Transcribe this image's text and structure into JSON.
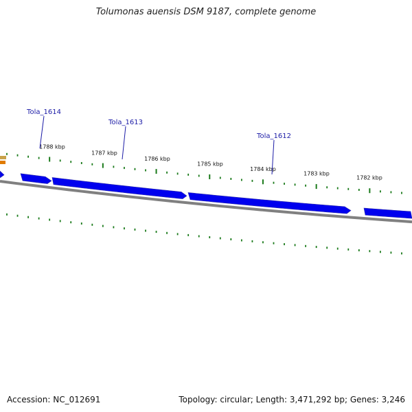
{
  "title": "Tolumonas auensis DSM 9187, complete genome",
  "footer": {
    "accession": "Accession: NC_012691",
    "summary": "Topology: circular; Length: 3,471,292 bp; Genes: 3,246"
  },
  "colors": {
    "gene_fill": "#0000ee",
    "gene_label": "#1a1aa6",
    "backbone": "#808080",
    "tick": "#1a7a1a"
  },
  "gene_labels": [
    "Tola_1614",
    "Tola_1613",
    "Tola_1612"
  ],
  "tick_labels": [
    "1788 kbp",
    "1787 kbp",
    "1786 kbp",
    "1785 kbp",
    "1784 kbp",
    "1783 kbp",
    "1782 kbp"
  ]
}
